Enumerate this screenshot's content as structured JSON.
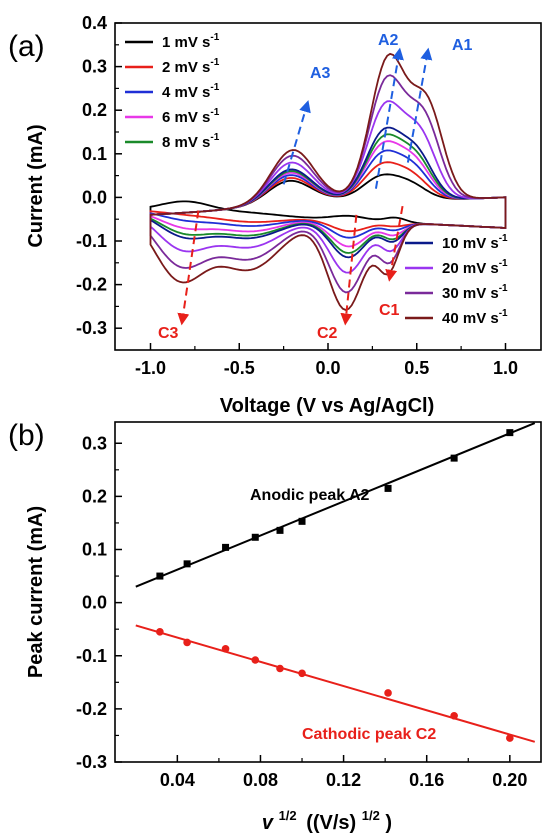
{
  "chart_data": [
    {
      "panel": "(a)",
      "type": "line",
      "xlabel": "Voltage (V vs Ag/AgCl)",
      "ylabel": "Current (mA)",
      "xlim": [
        -1.2,
        1.2
      ],
      "ylim": [
        -0.35,
        0.4
      ],
      "xticks": [
        "-1.0",
        "-0.5",
        "0.0",
        "0.5",
        "1.0"
      ],
      "yticks": [
        "-0.3",
        "-0.2",
        "-0.1",
        "0.0",
        "0.1",
        "0.2",
        "0.3",
        "0.4"
      ],
      "grid": false,
      "legend_position": "split: top-left and bottom-right",
      "series": [
        {
          "name": "1 mV s",
          "superscript": "-1",
          "color": "#000000",
          "anodic_peak": 0.05,
          "cathodic_peak": -0.04,
          "legend": "left"
        },
        {
          "name": "2 mV s",
          "superscript": "-1",
          "color": "#e8201a",
          "anodic_peak": 0.075,
          "cathodic_peak": -0.075,
          "legend": "left"
        },
        {
          "name": "4 mV s",
          "superscript": "-1",
          "color": "#1f2fd6",
          "anodic_peak": 0.1,
          "cathodic_peak": -0.09,
          "legend": "left"
        },
        {
          "name": "6 mV s",
          "superscript": "-1",
          "color": "#e838e8",
          "anodic_peak": 0.12,
          "cathodic_peak": -0.11,
          "legend": "left"
        },
        {
          "name": "8 mV s",
          "superscript": "-1",
          "color": "#1a8a2a",
          "anodic_peak": 0.135,
          "cathodic_peak": -0.125,
          "legend": "left"
        },
        {
          "name": "10 mV s",
          "superscript": "-1",
          "color": "#0a1a8a",
          "anodic_peak": 0.15,
          "cathodic_peak": -0.135,
          "legend": "right"
        },
        {
          "name": "20 mV s",
          "superscript": "-1",
          "color": "#9a35f0",
          "anodic_peak": 0.21,
          "cathodic_peak": -0.17,
          "legend": "right"
        },
        {
          "name": "30 mV s",
          "superscript": "-1",
          "color": "#7a2a9a",
          "anodic_peak": 0.27,
          "cathodic_peak": -0.215,
          "legend": "right"
        },
        {
          "name": "40 mV s",
          "superscript": "-1",
          "color": "#7a1a1a",
          "anodic_peak": 0.32,
          "cathodic_peak": -0.255,
          "legend": "right"
        }
      ],
      "annotations": {
        "anodic": [
          {
            "label": "A1",
            "x0": 0.45,
            "y0": 0.08,
            "x1": 0.56,
            "y1": 0.33
          },
          {
            "label": "A2",
            "x0": 0.27,
            "y0": 0.02,
            "x1": 0.4,
            "y1": 0.33
          },
          {
            "label": "A3",
            "x0": -0.25,
            "y0": 0.03,
            "x1": -0.12,
            "y1": 0.21
          }
        ],
        "cathodic": [
          {
            "label": "C1",
            "x0": 0.42,
            "y0": -0.02,
            "x1": 0.35,
            "y1": -0.18
          },
          {
            "label": "C2",
            "x0": 0.16,
            "y0": -0.04,
            "x1": 0.1,
            "y1": -0.28
          },
          {
            "label": "C3",
            "x0": -0.73,
            "y0": -0.03,
            "x1": -0.82,
            "y1": -0.28
          }
        ],
        "anodic_color": "#1f5fe0",
        "cathodic_color": "#e8201a"
      }
    },
    {
      "panel": "(b)",
      "type": "scatter",
      "xlabel_main": "v",
      "xlabel_exp": "1/2",
      "xlabel_unit": "((V/s)",
      "xlabel_unit_exp": "1/2",
      "xlabel_close": ")",
      "ylabel": "Peak current (mA)",
      "xlim": [
        0.01,
        0.215
      ],
      "ylim": [
        -0.3,
        0.34
      ],
      "xticks": [
        "0.04",
        "0.08",
        "0.12",
        "0.16",
        "0.20"
      ],
      "yticks": [
        "-0.3",
        "-0.2",
        "-0.1",
        "0.0",
        "0.1",
        "0.2",
        "0.3"
      ],
      "grid": false,
      "series": [
        {
          "name": "Anodic peak A2",
          "color": "#000000",
          "marker": "square",
          "x": [
            0.0316,
            0.0447,
            0.0632,
            0.0775,
            0.0894,
            0.1,
            0.1414,
            0.1732,
            0.2
          ],
          "y": [
            0.05,
            0.073,
            0.104,
            0.123,
            0.136,
            0.153,
            0.215,
            0.272,
            0.32
          ],
          "fit": {
            "x": [
              0.02,
              0.212
            ],
            "y": [
              0.03,
              0.338
            ]
          }
        },
        {
          "name": "Cathodic peak C2",
          "color": "#e8201a",
          "marker": "circle",
          "x": [
            0.0316,
            0.0447,
            0.0632,
            0.0775,
            0.0894,
            0.1,
            0.1414,
            0.1732,
            0.2
          ],
          "y": [
            -0.055,
            -0.075,
            -0.087,
            -0.108,
            -0.124,
            -0.133,
            -0.17,
            -0.213,
            -0.255
          ],
          "fit": {
            "x": [
              0.02,
              0.212
            ],
            "y": [
              -0.043,
              -0.262
            ]
          }
        }
      ]
    }
  ]
}
